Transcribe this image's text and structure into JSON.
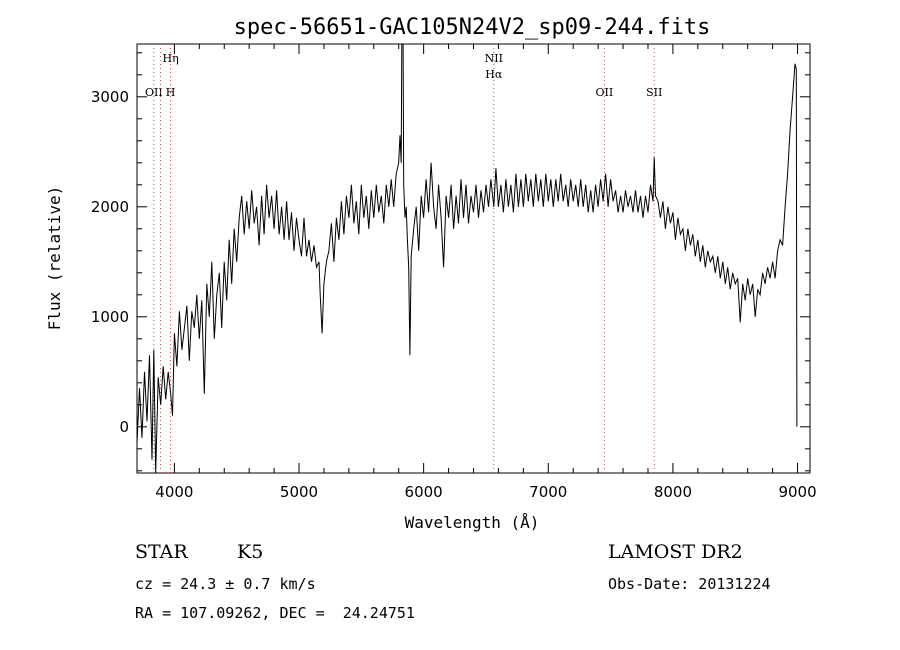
{
  "chart_data": {
    "type": "line",
    "title": "spec-56651-GAC105N24V2_sp09-244.fits",
    "xlabel": "Wavelength (Å)",
    "ylabel": "Flux (relative)",
    "xlim": [
      3700,
      9100
    ],
    "ylim": [
      -420,
      3480
    ],
    "x_ticks": [
      4000,
      5000,
      6000,
      7000,
      8000,
      9000
    ],
    "y_ticks": [
      0,
      1000,
      2000,
      3000
    ],
    "grid": false,
    "series": [
      {
        "color": "#000000",
        "points": [
          [
            3700,
            -150
          ],
          [
            3720,
            350
          ],
          [
            3740,
            -100
          ],
          [
            3760,
            500
          ],
          [
            3780,
            50
          ],
          [
            3800,
            650
          ],
          [
            3820,
            -300
          ],
          [
            3835,
            700
          ],
          [
            3850,
            -420
          ],
          [
            3870,
            450
          ],
          [
            3890,
            200
          ],
          [
            3910,
            550
          ],
          [
            3930,
            250
          ],
          [
            3950,
            500
          ],
          [
            3970,
            300
          ],
          [
            3985,
            100
          ],
          [
            4000,
            850
          ],
          [
            4020,
            550
          ],
          [
            4040,
            1050
          ],
          [
            4060,
            700
          ],
          [
            4080,
            900
          ],
          [
            4100,
            1100
          ],
          [
            4120,
            600
          ],
          [
            4140,
            1050
          ],
          [
            4160,
            900
          ],
          [
            4180,
            1200
          ],
          [
            4200,
            800
          ],
          [
            4220,
            1150
          ],
          [
            4240,
            300
          ],
          [
            4260,
            1300
          ],
          [
            4280,
            1000
          ],
          [
            4300,
            1500
          ],
          [
            4320,
            800
          ],
          [
            4340,
            1200
          ],
          [
            4360,
            1400
          ],
          [
            4380,
            900
          ],
          [
            4400,
            1500
          ],
          [
            4420,
            1150
          ],
          [
            4440,
            1700
          ],
          [
            4460,
            1300
          ],
          [
            4480,
            1800
          ],
          [
            4500,
            1500
          ],
          [
            4520,
            1900
          ],
          [
            4540,
            2100
          ],
          [
            4560,
            1750
          ],
          [
            4580,
            2050
          ],
          [
            4600,
            1800
          ],
          [
            4620,
            2150
          ],
          [
            4640,
            1850
          ],
          [
            4660,
            2000
          ],
          [
            4680,
            1650
          ],
          [
            4700,
            2100
          ],
          [
            4720,
            1750
          ],
          [
            4740,
            2200
          ],
          [
            4760,
            1900
          ],
          [
            4780,
            2100
          ],
          [
            4800,
            1800
          ],
          [
            4820,
            2150
          ],
          [
            4840,
            1750
          ],
          [
            4860,
            2000
          ],
          [
            4880,
            1700
          ],
          [
            4900,
            2050
          ],
          [
            4920,
            1700
          ],
          [
            4940,
            1950
          ],
          [
            4960,
            1600
          ],
          [
            4980,
            1900
          ],
          [
            5000,
            1700
          ],
          [
            5020,
            1550
          ],
          [
            5040,
            1900
          ],
          [
            5060,
            1550
          ],
          [
            5080,
            1700
          ],
          [
            5100,
            1500
          ],
          [
            5120,
            1650
          ],
          [
            5140,
            1450
          ],
          [
            5160,
            1500
          ],
          [
            5170,
            1200
          ],
          [
            5185,
            850
          ],
          [
            5200,
            1300
          ],
          [
            5220,
            1500
          ],
          [
            5240,
            1600
          ],
          [
            5260,
            1850
          ],
          [
            5280,
            1500
          ],
          [
            5300,
            1900
          ],
          [
            5320,
            1700
          ],
          [
            5340,
            2050
          ],
          [
            5360,
            1750
          ],
          [
            5380,
            2100
          ],
          [
            5400,
            1900
          ],
          [
            5420,
            2200
          ],
          [
            5440,
            1850
          ],
          [
            5460,
            2050
          ],
          [
            5480,
            1750
          ],
          [
            5500,
            2200
          ],
          [
            5520,
            1900
          ],
          [
            5540,
            2100
          ],
          [
            5560,
            1800
          ],
          [
            5580,
            2150
          ],
          [
            5600,
            1900
          ],
          [
            5620,
            2200
          ],
          [
            5640,
            1950
          ],
          [
            5660,
            2100
          ],
          [
            5680,
            1850
          ],
          [
            5700,
            2200
          ],
          [
            5720,
            2000
          ],
          [
            5740,
            2250
          ],
          [
            5760,
            2000
          ],
          [
            5780,
            2300
          ],
          [
            5800,
            2400
          ],
          [
            5810,
            2650
          ],
          [
            5820,
            2400
          ],
          [
            5825,
            3480
          ],
          [
            5835,
            3480
          ],
          [
            5840,
            2200
          ],
          [
            5850,
            1900
          ],
          [
            5860,
            2000
          ],
          [
            5870,
            1700
          ],
          [
            5880,
            1450
          ],
          [
            5890,
            650
          ],
          [
            5900,
            1550
          ],
          [
            5920,
            1800
          ],
          [
            5940,
            2000
          ],
          [
            5960,
            1600
          ],
          [
            5980,
            2100
          ],
          [
            6000,
            1900
          ],
          [
            6020,
            2250
          ],
          [
            6040,
            1950
          ],
          [
            6060,
            2400
          ],
          [
            6080,
            2000
          ],
          [
            6100,
            1800
          ],
          [
            6120,
            2200
          ],
          [
            6140,
            1900
          ],
          [
            6160,
            1450
          ],
          [
            6180,
            2100
          ],
          [
            6200,
            1900
          ],
          [
            6220,
            2200
          ],
          [
            6240,
            1800
          ],
          [
            6260,
            2100
          ],
          [
            6280,
            1850
          ],
          [
            6300,
            2250
          ],
          [
            6320,
            1900
          ],
          [
            6340,
            2200
          ],
          [
            6360,
            1850
          ],
          [
            6380,
            2100
          ],
          [
            6400,
            1950
          ],
          [
            6420,
            2200
          ],
          [
            6440,
            1900
          ],
          [
            6460,
            2150
          ],
          [
            6480,
            1950
          ],
          [
            6500,
            2200
          ],
          [
            6520,
            2000
          ],
          [
            6540,
            2250
          ],
          [
            6563,
            2000
          ],
          [
            6580,
            2350
          ],
          [
            6600,
            2000
          ],
          [
            6620,
            2200
          ],
          [
            6640,
            1950
          ],
          [
            6660,
            2250
          ],
          [
            6680,
            2000
          ],
          [
            6700,
            2200
          ],
          [
            6720,
            1950
          ],
          [
            6740,
            2300
          ],
          [
            6760,
            2000
          ],
          [
            6780,
            2250
          ],
          [
            6800,
            2000
          ],
          [
            6820,
            2300
          ],
          [
            6840,
            2050
          ],
          [
            6860,
            2250
          ],
          [
            6880,
            2000
          ],
          [
            6900,
            2300
          ],
          [
            6920,
            2050
          ],
          [
            6940,
            2250
          ],
          [
            6960,
            2000
          ],
          [
            6980,
            2300
          ],
          [
            7000,
            2050
          ],
          [
            7020,
            2250
          ],
          [
            7040,
            2000
          ],
          [
            7060,
            2250
          ],
          [
            7080,
            2050
          ],
          [
            7100,
            2300
          ],
          [
            7120,
            2050
          ],
          [
            7140,
            2200
          ],
          [
            7160,
            2000
          ],
          [
            7180,
            2250
          ],
          [
            7200,
            2050
          ],
          [
            7220,
            2200
          ],
          [
            7240,
            2000
          ],
          [
            7260,
            2250
          ],
          [
            7280,
            2000
          ],
          [
            7300,
            2200
          ],
          [
            7320,
            1950
          ],
          [
            7340,
            2150
          ],
          [
            7360,
            1950
          ],
          [
            7380,
            2200
          ],
          [
            7400,
            2000
          ],
          [
            7420,
            2250
          ],
          [
            7440,
            2050
          ],
          [
            7460,
            2300
          ],
          [
            7480,
            2000
          ],
          [
            7500,
            2250
          ],
          [
            7520,
            2050
          ],
          [
            7540,
            2150
          ],
          [
            7560,
            1950
          ],
          [
            7580,
            2100
          ],
          [
            7600,
            1950
          ],
          [
            7620,
            2150
          ],
          [
            7640,
            2000
          ],
          [
            7660,
            2100
          ],
          [
            7680,
            1950
          ],
          [
            7700,
            2150
          ],
          [
            7720,
            1950
          ],
          [
            7740,
            2100
          ],
          [
            7760,
            1900
          ],
          [
            7780,
            2100
          ],
          [
            7800,
            1950
          ],
          [
            7820,
            2200
          ],
          [
            7840,
            2050
          ],
          [
            7850,
            2450
          ],
          [
            7860,
            2100
          ],
          [
            7880,
            2050
          ],
          [
            7900,
            1900
          ],
          [
            7920,
            2050
          ],
          [
            7940,
            1800
          ],
          [
            7960,
            2000
          ],
          [
            7980,
            1850
          ],
          [
            8000,
            1950
          ],
          [
            8020,
            1700
          ],
          [
            8040,
            1900
          ],
          [
            8060,
            1750
          ],
          [
            8080,
            1800
          ],
          [
            8100,
            1600
          ],
          [
            8120,
            1800
          ],
          [
            8140,
            1650
          ],
          [
            8160,
            1750
          ],
          [
            8180,
            1550
          ],
          [
            8200,
            1700
          ],
          [
            8220,
            1500
          ],
          [
            8240,
            1650
          ],
          [
            8260,
            1450
          ],
          [
            8280,
            1600
          ],
          [
            8300,
            1500
          ],
          [
            8320,
            1550
          ],
          [
            8340,
            1400
          ],
          [
            8360,
            1550
          ],
          [
            8380,
            1350
          ],
          [
            8400,
            1500
          ],
          [
            8420,
            1300
          ],
          [
            8440,
            1450
          ],
          [
            8460,
            1250
          ],
          [
            8480,
            1400
          ],
          [
            8500,
            1300
          ],
          [
            8520,
            1350
          ],
          [
            8540,
            950
          ],
          [
            8560,
            1300
          ],
          [
            8580,
            1150
          ],
          [
            8600,
            1350
          ],
          [
            8620,
            1200
          ],
          [
            8640,
            1300
          ],
          [
            8660,
            1000
          ],
          [
            8680,
            1250
          ],
          [
            8700,
            1200
          ],
          [
            8720,
            1400
          ],
          [
            8740,
            1300
          ],
          [
            8760,
            1450
          ],
          [
            8780,
            1350
          ],
          [
            8800,
            1500
          ],
          [
            8820,
            1350
          ],
          [
            8840,
            1600
          ],
          [
            8860,
            1700
          ],
          [
            8880,
            1650
          ],
          [
            8900,
            2000
          ],
          [
            8920,
            2300
          ],
          [
            8940,
            2700
          ],
          [
            8960,
            3000
          ],
          [
            8980,
            3300
          ],
          [
            8990,
            3250
          ],
          [
            8995,
            0
          ]
        ]
      }
    ],
    "line_markers": [
      {
        "x": 3835,
        "labels": [
          "OII"
        ]
      },
      {
        "x": 3889,
        "labels": [
          "Hη"
        ]
      },
      {
        "x": 3969,
        "labels": [
          "H"
        ]
      },
      {
        "x": 6563,
        "labels": [
          "NII",
          "Hα"
        ]
      },
      {
        "x": 7450,
        "labels": [
          "OII"
        ]
      },
      {
        "x": 7850,
        "labels": [
          "SII"
        ]
      }
    ]
  },
  "info": {
    "class_label": "STAR",
    "subclass_label": "K5",
    "survey": "LAMOST DR2",
    "cz": "cz = 24.3 ± 0.7 km/s",
    "obs_date": "Obs-Date: 20131224",
    "coords": "RA = 107.09262, DEC =  24.24751"
  }
}
